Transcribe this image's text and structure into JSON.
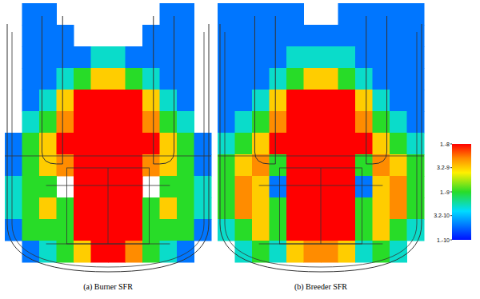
{
  "chart_data": [
    {
      "type": "heatmap",
      "title": "(a) Burner SFR",
      "log": true,
      "tick_labels": false,
      "cells": [
        [
          null,
          2e-10,
          2e-10,
          null,
          null,
          null,
          null,
          null,
          null,
          2e-10,
          2e-10,
          null
        ],
        [
          null,
          2e-10,
          2e-10,
          2e-10,
          null,
          null,
          null,
          null,
          2e-10,
          2e-10,
          2e-10,
          null
        ],
        [
          null,
          2e-10,
          2e-10,
          2e-10,
          2e-10,
          5e-10,
          5e-10,
          2e-10,
          2e-10,
          2e-10,
          2e-10,
          null
        ],
        [
          null,
          2e-10,
          2e-10,
          5e-10,
          1e-09,
          3.2e-09,
          3.2e-09,
          1e-09,
          5e-10,
          2e-10,
          2e-10,
          null
        ],
        [
          null,
          2e-10,
          5e-10,
          3.2e-09,
          1e-08,
          1e-08,
          1e-08,
          1e-08,
          3.2e-09,
          5e-10,
          2e-10,
          null
        ],
        [
          null,
          5e-10,
          1e-09,
          5e-09,
          1e-08,
          1e-08,
          1e-08,
          1e-08,
          5e-09,
          1e-09,
          5e-10,
          null
        ],
        [
          2e-10,
          1e-09,
          3.2e-09,
          1e-08,
          1e-08,
          1e-08,
          1e-08,
          1e-08,
          1e-08,
          3.2e-09,
          1e-09,
          2e-10
        ],
        [
          2e-10,
          1e-09,
          3.2e-09,
          5e-09,
          1e-08,
          1e-08,
          1e-08,
          1e-08,
          5e-09,
          3.2e-09,
          1e-09,
          2e-10
        ],
        [
          5e-10,
          1e-09,
          1e-09,
          null,
          1e-08,
          1e-08,
          1e-08,
          1e-08,
          null,
          1e-09,
          1e-09,
          5e-10
        ],
        [
          5e-10,
          1e-09,
          3.2e-09,
          1e-09,
          1e-08,
          1e-08,
          1e-08,
          1e-08,
          1e-09,
          3.2e-09,
          1e-09,
          5e-10
        ],
        [
          2e-10,
          1e-09,
          1e-09,
          1e-09,
          1e-08,
          1e-08,
          1e-08,
          1e-08,
          1e-09,
          1e-09,
          1e-09,
          2e-10
        ],
        [
          null,
          2e-10,
          5e-10,
          1e-09,
          3.2e-09,
          1e-08,
          1e-08,
          5e-09,
          1e-09,
          5e-10,
          2e-10,
          null
        ]
      ]
    },
    {
      "type": "heatmap",
      "title": "(b) Breeder SFR",
      "log": true,
      "tick_labels": false,
      "cells": [
        [
          2e-10,
          2e-10,
          2e-10,
          2e-10,
          2e-10,
          null,
          null,
          2e-10,
          2e-10,
          2e-10,
          2e-10,
          2e-10
        ],
        [
          2e-10,
          2e-10,
          2e-10,
          2e-10,
          2e-10,
          2e-10,
          2e-10,
          2e-10,
          2e-10,
          2e-10,
          2e-10,
          2e-10
        ],
        [
          2e-10,
          2e-10,
          2e-10,
          2e-10,
          5e-10,
          5e-10,
          5e-10,
          5e-10,
          2e-10,
          2e-10,
          2e-10,
          2e-10
        ],
        [
          2e-10,
          2e-10,
          2e-10,
          5e-10,
          1e-09,
          3.2e-09,
          3.2e-09,
          1e-09,
          5e-10,
          2e-10,
          2e-10,
          2e-10
        ],
        [
          2e-10,
          2e-10,
          5e-10,
          3.2e-09,
          1e-08,
          1e-08,
          1e-08,
          1e-08,
          3.2e-09,
          5e-10,
          2e-10,
          2e-10
        ],
        [
          2e-10,
          5e-10,
          1e-09,
          5e-09,
          1e-08,
          1e-08,
          1e-08,
          1e-08,
          5e-09,
          1e-09,
          5e-10,
          2e-10
        ],
        [
          5e-10,
          1e-09,
          3.2e-09,
          1e-08,
          1e-08,
          1e-08,
          1e-08,
          1e-08,
          1e-08,
          3.2e-09,
          1e-09,
          5e-10
        ],
        [
          1e-09,
          3.2e-09,
          5e-09,
          1e-09,
          1e-08,
          1e-08,
          1e-08,
          1e-08,
          1e-09,
          5e-09,
          3.2e-09,
          1e-09
        ],
        [
          1e-09,
          5e-09,
          3.2e-09,
          2e-10,
          1e-08,
          1e-08,
          1e-08,
          1e-08,
          2e-10,
          3.2e-09,
          5e-09,
          1e-09
        ],
        [
          1e-09,
          5e-09,
          3.2e-09,
          1e-09,
          1e-08,
          1e-08,
          1e-08,
          1e-08,
          1e-09,
          3.2e-09,
          5e-09,
          1e-09
        ],
        [
          5e-10,
          1e-09,
          3.2e-09,
          1e-09,
          1e-08,
          1e-08,
          1e-08,
          1e-08,
          1e-09,
          3.2e-09,
          1e-09,
          5e-10
        ],
        [
          null,
          5e-10,
          1e-09,
          5e-10,
          3.2e-09,
          5e-09,
          5e-09,
          3.2e-09,
          5e-10,
          1e-09,
          5e-10,
          null
        ]
      ]
    }
  ],
  "colorbar": {
    "range": [
      1e-10,
      1e-08
    ],
    "ticks": [
      {
        "value": 1e-08,
        "label": "1.-8"
      },
      {
        "value": 3.2e-09,
        "label": "3.2-9"
      },
      {
        "value": 1e-09,
        "label": "1.-9"
      },
      {
        "value": 3.2e-10,
        "label": "3.2-10"
      },
      {
        "value": 1e-10,
        "label": "1.-10"
      }
    ]
  }
}
